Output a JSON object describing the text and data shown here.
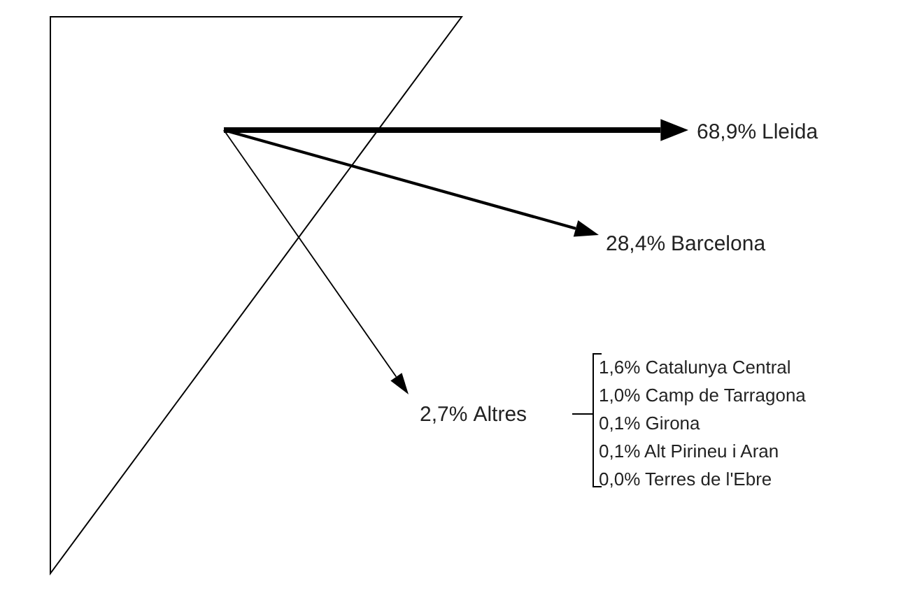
{
  "chart_data": {
    "type": "other",
    "categories": [
      "Lleida",
      "Barcelona",
      "Altres"
    ],
    "values": [
      68.9,
      28.4,
      2.7
    ],
    "value_labels": [
      "68,9%",
      "28,4%",
      "2,7%"
    ],
    "color": "#000000",
    "annotations": [
      "1,6% Catalunya Central",
      "1,0% Camp de Tarragona",
      "0,1% Girona",
      "0,1% Alt Pirineu i Aran",
      "0,0% Terres de l'Ebre"
    ]
  }
}
